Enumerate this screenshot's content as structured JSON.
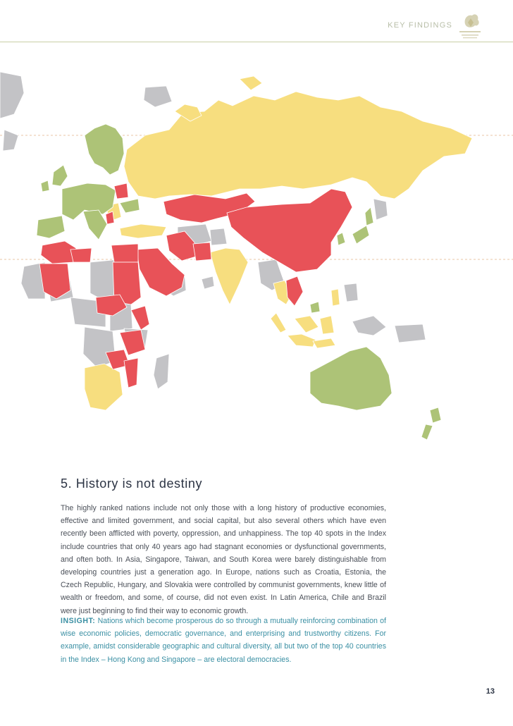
{
  "header": {
    "section_label": "KEY FINDINGS"
  },
  "colors": {
    "prosperous": "#adc377",
    "middle": "#f7de7f",
    "low": "#e85258",
    "no_data": "#c3c3c6",
    "title": "#2c3444",
    "insight": "#3a8fa3"
  },
  "section": {
    "title": "5. History is not destiny",
    "body": "The highly ranked nations include not only those with a long history of productive economies, effective and limited government, and social capital, but also several others which have even recently been afflicted with poverty, oppression, and unhappiness. The top 40 spots in the Index include countries that only 40 years ago had stagnant economies or dysfunctional governments, and often both. In Asia, Singapore, Taiwan, and South Korea were barely distinguishable from developing countries just a generation ago. In Europe, nations such as Croatia, Estonia, the Czech Republic, Hungary, and Slovakia were controlled by communist governments, knew little of wealth or freedom, and some, of course, did not even exist. In Latin America, Chile and Brazil were just beginning to find their way to economic growth.",
    "insight_label": "INSIGHT:",
    "insight_text": " Nations which become prosperous do so through a mutually reinforcing combination of wise economic policies, democratic governance, and enterprising and trustworthy citizens. For example, amidst considerable geographic and cultural diversity, all but two of the top 40 countries in the Index – Hong Kong and Singapore – are electoral democracies."
  },
  "page_number": "13"
}
